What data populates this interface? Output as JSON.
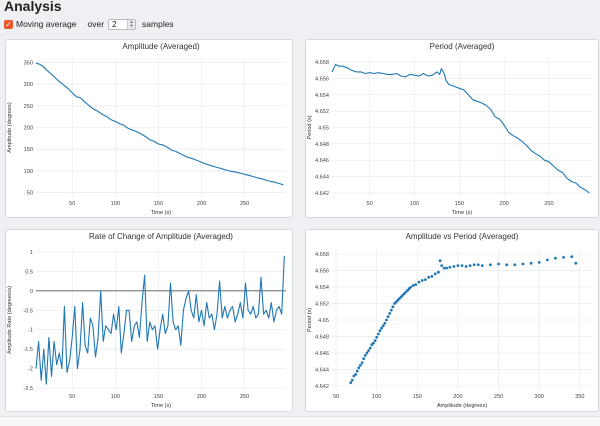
{
  "header": {
    "title": "Analysis"
  },
  "controls": {
    "moving_average_label": "Moving average",
    "over_label": "over",
    "samples_value": "2",
    "samples_label": "samples"
  },
  "chart_data": [
    {
      "type": "line",
      "title": "Amplitude (Averaged)",
      "xlabel": "Time (s)",
      "ylabel": "Amplitude (degrees)",
      "xlim": [
        8,
        298
      ],
      "ylim": [
        40,
        360
      ],
      "xticks": [
        50,
        100,
        150,
        200,
        250
      ],
      "yticks": [
        50,
        100,
        150,
        200,
        250,
        300,
        350
      ],
      "color": "#1f77b4",
      "series": [
        {
          "x": [
            8,
            12,
            16,
            20,
            25,
            30,
            35,
            40,
            45,
            50,
            55,
            60,
            65,
            70,
            75,
            80,
            85,
            90,
            95,
            100,
            105,
            110,
            115,
            120,
            125,
            130,
            135,
            140,
            145,
            150,
            155,
            160,
            165,
            170,
            175,
            180,
            185,
            190,
            195,
            200,
            205,
            210,
            215,
            220,
            225,
            230,
            235,
            240,
            245,
            250,
            255,
            260,
            265,
            270,
            275,
            280,
            285,
            290,
            295
          ],
          "values": [
            348,
            346,
            341,
            333,
            324,
            315,
            306,
            298,
            290,
            280,
            271,
            268,
            258,
            250,
            242,
            237,
            230,
            225,
            218,
            214,
            209,
            205,
            198,
            194,
            190,
            185,
            179,
            172,
            168,
            162,
            160,
            155,
            148,
            145,
            140,
            135,
            131,
            128,
            124,
            120,
            116,
            113,
            110,
            107,
            104,
            101,
            99,
            97,
            95,
            92,
            90,
            87,
            84,
            82,
            79,
            76,
            74,
            71,
            68
          ]
        }
      ]
    },
    {
      "type": "line",
      "title": "Period (Averaged)",
      "xlabel": "Time (s)",
      "ylabel": "Period (s)",
      "xlim": [
        8,
        298
      ],
      "ylim": [
        4.6415,
        4.6585
      ],
      "xticks": [
        50,
        100,
        150,
        200,
        250
      ],
      "yticks": [
        4.642,
        4.644,
        4.646,
        4.648,
        4.65,
        4.652,
        4.654,
        4.656,
        4.658
      ],
      "color": "#1f77b4",
      "series": [
        {
          "x": [
            8,
            12,
            16,
            20,
            25,
            30,
            35,
            40,
            45,
            50,
            55,
            60,
            65,
            70,
            75,
            80,
            85,
            90,
            95,
            100,
            105,
            110,
            115,
            120,
            125,
            128,
            130,
            133,
            135,
            138,
            140,
            145,
            150,
            155,
            160,
            165,
            170,
            175,
            180,
            185,
            190,
            195,
            200,
            205,
            210,
            215,
            220,
            225,
            230,
            235,
            240,
            245,
            250,
            255,
            260,
            265,
            270,
            275,
            280,
            285,
            290,
            295
          ],
          "values": [
            4.6568,
            4.6577,
            4.6575,
            4.6575,
            4.6573,
            4.657,
            4.6568,
            4.6568,
            4.6566,
            4.6567,
            4.6566,
            4.6567,
            4.6566,
            4.6565,
            4.6565,
            4.6566,
            4.6563,
            4.6562,
            4.6565,
            4.6564,
            4.6563,
            4.6566,
            4.6563,
            4.6564,
            4.6568,
            4.6565,
            4.6572,
            4.6566,
            4.6558,
            4.6553,
            4.6552,
            4.655,
            4.6548,
            4.6546,
            4.654,
            4.6534,
            4.6532,
            4.653,
            4.6527,
            4.6522,
            4.6513,
            4.651,
            4.6503,
            4.6494,
            4.649,
            4.6487,
            4.6483,
            4.6478,
            4.6472,
            4.6468,
            4.6465,
            4.646,
            4.6458,
            4.6453,
            4.6448,
            4.6445,
            4.6438,
            4.6434,
            4.6432,
            4.6427,
            4.6424,
            4.642
          ]
        }
      ]
    },
    {
      "type": "line",
      "title": "Rate of Change of Amplitude (Averaged)",
      "xlabel": "Time (s)",
      "ylabel": "Amplitude Rate (degrees/s)",
      "xlim": [
        8,
        298
      ],
      "ylim": [
        -2.55,
        1.05
      ],
      "xticks": [
        50,
        100,
        150,
        200,
        250
      ],
      "yticks": [
        -2.5,
        -2,
        -1.5,
        -1,
        -0.5,
        0,
        0.5,
        1
      ],
      "zero_line": true,
      "color": "#1f77b4",
      "series": [
        {
          "x": [
            8,
            11,
            14,
            17,
            20,
            23,
            26,
            29,
            32,
            35,
            38,
            41,
            44,
            47,
            50,
            53,
            56,
            59,
            62,
            65,
            68,
            71,
            74,
            77,
            80,
            83,
            86,
            89,
            92,
            95,
            98,
            101,
            104,
            107,
            110,
            113,
            116,
            119,
            122,
            125,
            128,
            131,
            134,
            137,
            140,
            143,
            146,
            149,
            152,
            155,
            158,
            161,
            164,
            167,
            170,
            173,
            176,
            179,
            182,
            185,
            188,
            191,
            194,
            197,
            200,
            203,
            206,
            209,
            212,
            215,
            218,
            221,
            224,
            227,
            230,
            233,
            236,
            239,
            242,
            245,
            248,
            251,
            254,
            257,
            260,
            263,
            266,
            269,
            272,
            275,
            278,
            281,
            284,
            287,
            290,
            293,
            296
          ],
          "values": [
            -2.0,
            -1.3,
            -2.3,
            -1.5,
            -2.4,
            -1.2,
            -2.2,
            -1.3,
            -1.9,
            -1.6,
            -2.0,
            -0.4,
            -2.1,
            -1.8,
            -1.2,
            -0.4,
            -2.0,
            -1.5,
            -0.3,
            -1.4,
            -1.6,
            -0.7,
            -0.9,
            -1.7,
            -1.2,
            0.0,
            -1.3,
            -0.9,
            -1.0,
            -1.1,
            -0.6,
            -1.0,
            -0.4,
            -1.6,
            -1.1,
            -0.5,
            -0.5,
            -1.3,
            -0.9,
            -0.8,
            -1.2,
            -0.3,
            0.4,
            -1.3,
            -0.8,
            -1.0,
            -0.9,
            -1.5,
            -1.0,
            -0.6,
            -1.1,
            -0.9,
            0.2,
            -0.8,
            -1.0,
            -0.9,
            -1.4,
            -0.5,
            -0.2,
            0.0,
            -0.5,
            -0.7,
            -0.1,
            -0.8,
            -0.5,
            -0.9,
            -0.3,
            -0.7,
            -0.6,
            -1.0,
            -0.6,
            0.25,
            -0.7,
            -0.4,
            -0.7,
            -0.5,
            -0.4,
            -0.8,
            -0.6,
            -0.3,
            -0.7,
            0.2,
            -0.5,
            -0.6,
            -0.4,
            -0.7,
            -0.6,
            0.35,
            -0.6,
            -0.5,
            -0.7,
            -0.3,
            -0.8,
            -0.5,
            -0.4,
            -0.6,
            0.9
          ]
        }
      ]
    },
    {
      "type": "scatter",
      "title": "Amplitude vs Period (Averaged)",
      "xlabel": "Amplitude (degrees)",
      "ylabel": "Period (s)",
      "xlim": [
        45,
        365
      ],
      "ylim": [
        4.6415,
        4.6585
      ],
      "xticks": [
        50,
        100,
        150,
        200,
        250,
        300,
        350
      ],
      "yticks": [
        4.642,
        4.644,
        4.646,
        4.648,
        4.65,
        4.652,
        4.654,
        4.656,
        4.658
      ],
      "color": "#1f77b4",
      "series": [
        {
          "x": [
            68,
            70,
            72,
            74,
            76,
            78,
            80,
            82,
            84,
            86,
            88,
            90,
            92,
            94,
            96,
            98,
            100,
            102,
            104,
            106,
            108,
            110,
            112,
            114,
            116,
            118,
            120,
            122,
            124,
            126,
            128,
            130,
            132,
            134,
            136,
            138,
            140,
            142,
            145,
            148,
            152,
            156,
            160,
            164,
            168,
            172,
            176,
            178,
            180,
            183,
            186,
            190,
            195,
            200,
            205,
            210,
            215,
            220,
            225,
            230,
            240,
            250,
            260,
            270,
            280,
            290,
            300,
            310,
            320,
            330,
            340,
            345
          ],
          "values": [
            4.6424,
            4.6427,
            4.6432,
            4.6434,
            4.6438,
            4.6442,
            4.6445,
            4.6448,
            4.6453,
            4.6457,
            4.646,
            4.6463,
            4.6466,
            4.647,
            4.6472,
            4.6475,
            4.6479,
            4.6483,
            4.6487,
            4.649,
            4.6493,
            4.6496,
            4.65,
            4.6504,
            4.6508,
            4.6512,
            4.6516,
            4.652,
            4.6522,
            4.6524,
            4.6526,
            4.6528,
            4.653,
            4.6532,
            4.6534,
            4.6536,
            4.6538,
            4.654,
            4.6542,
            4.6543,
            4.6546,
            4.6548,
            4.6549,
            4.6552,
            4.6553,
            4.6556,
            4.6558,
            4.6572,
            4.6566,
            4.6563,
            4.6563,
            4.6564,
            4.6565,
            4.6566,
            4.6566,
            4.6565,
            4.6566,
            4.6567,
            4.6567,
            4.6566,
            4.6567,
            4.6568,
            4.6567,
            4.6567,
            4.6568,
            4.6569,
            4.657,
            4.6573,
            4.6575,
            4.6576,
            4.6577,
            4.6569
          ]
        }
      ]
    }
  ]
}
